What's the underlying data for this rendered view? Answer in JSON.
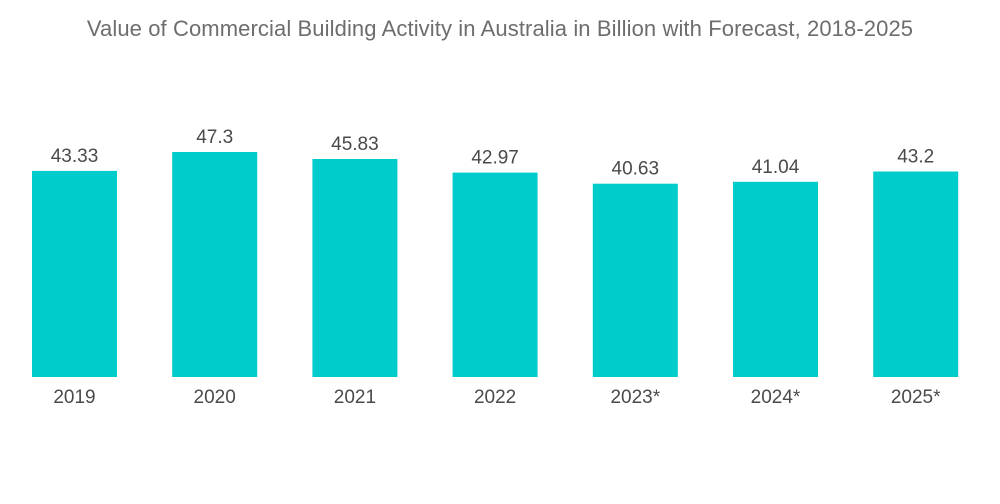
{
  "chart_data": {
    "type": "bar",
    "title": "Value of Commercial Building Activity in Australia in Billion with Forecast, 2018-2025",
    "xlabel": "",
    "ylabel": "",
    "categories": [
      "2019",
      "2020",
      "2021",
      "2022",
      "2023*",
      "2024*",
      "2025*"
    ],
    "values": [
      43.33,
      47.3,
      45.83,
      42.97,
      40.63,
      41.04,
      43.2
    ],
    "value_labels": [
      "43.33",
      "47.3",
      "45.83",
      "42.97",
      "40.63",
      "41.04",
      "43.2"
    ],
    "ylim": [
      0,
      47.3
    ],
    "grid": false,
    "legend": "none",
    "bar_color": "#00cccc"
  }
}
